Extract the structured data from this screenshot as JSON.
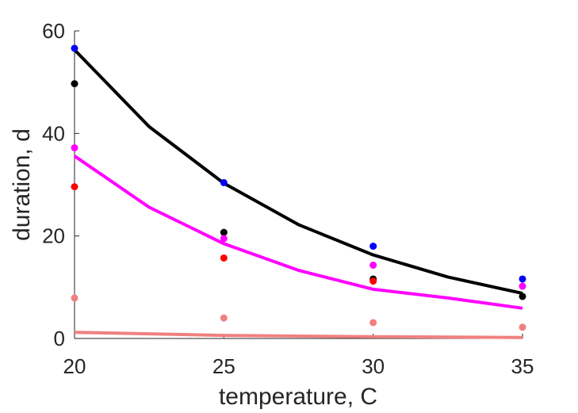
{
  "chart_data": {
    "type": "scatter",
    "title": "",
    "xlabel": "temperature, C",
    "ylabel": "duration, d",
    "xlim": [
      20,
      35
    ],
    "ylim": [
      0,
      60
    ],
    "x_ticks": [
      20,
      25,
      30,
      35
    ],
    "y_ticks": [
      0,
      20,
      40,
      60
    ],
    "grid": false,
    "legend": "none",
    "series": [
      {
        "color": "#0000ff",
        "kind": "points",
        "x": [
          20,
          25,
          30,
          35
        ],
        "y": [
          56.6,
          30.4,
          18.0,
          11.6
        ]
      },
      {
        "color": "#000000",
        "kind": "points",
        "x": [
          20,
          25,
          30,
          35
        ],
        "y": [
          49.7,
          20.7,
          11.6,
          8.2
        ]
      },
      {
        "color": "#ff00ff",
        "kind": "points",
        "x": [
          20,
          25,
          30,
          35
        ],
        "y": [
          37.2,
          19.5,
          14.3,
          10.2
        ]
      },
      {
        "color": "#ff0000",
        "kind": "points",
        "x": [
          20,
          25,
          30
        ],
        "y": [
          29.6,
          15.7,
          11.2
        ]
      },
      {
        "color": "#f08080",
        "kind": "points",
        "x": [
          20,
          25,
          30,
          35
        ],
        "y": [
          7.9,
          4.0,
          3.1,
          2.2
        ]
      },
      {
        "color": "#000000",
        "kind": "line",
        "x": [
          20,
          22.5,
          25,
          27.5,
          30,
          32.5,
          35
        ],
        "y": [
          56.3,
          41.3,
          30.3,
          22.2,
          16.3,
          12.0,
          8.8
        ]
      },
      {
        "color": "#ff00ff",
        "kind": "line",
        "x": [
          20,
          22.5,
          25,
          27.5,
          30,
          32.5,
          35
        ],
        "y": [
          35.6,
          25.6,
          18.5,
          13.3,
          9.6,
          7.9,
          5.9
        ]
      },
      {
        "color": "#f08080",
        "kind": "line",
        "x": [
          20,
          25,
          30,
          35
        ],
        "y": [
          1.2,
          0.6,
          0.35,
          0.2
        ]
      }
    ]
  }
}
